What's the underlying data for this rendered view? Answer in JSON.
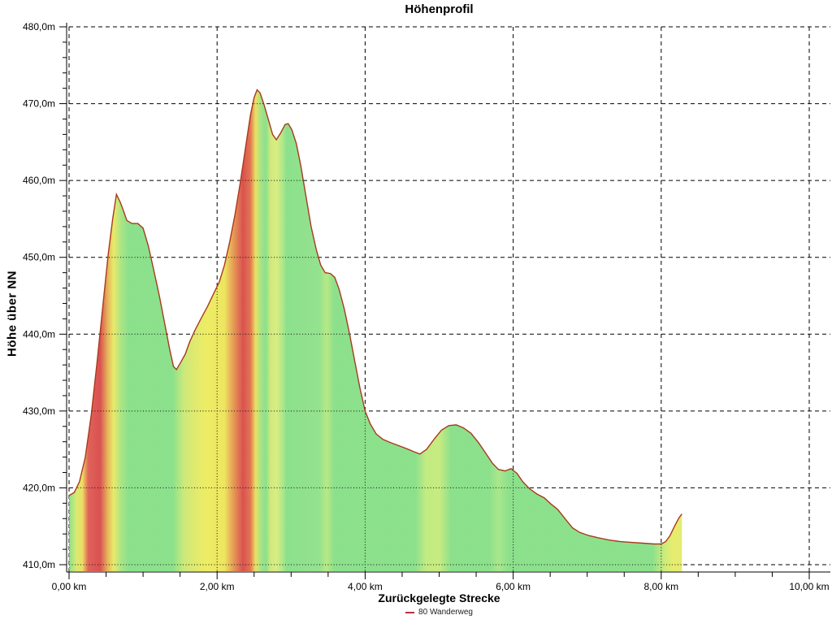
{
  "title": "Höhenprofil",
  "axes": {
    "x_title": "Zurückgelegte Strecke",
    "y_title": "Höhe über NN"
  },
  "legend": {
    "label": "80 Wanderweg",
    "marker_color": "#b5303f"
  },
  "colors": {
    "background": "#ffffff",
    "grid": "#000000",
    "profile_line": "#a83a1c",
    "fill_flat": "#86df86",
    "fill_moderate": "#ecec5c",
    "fill_steep": "#d84848"
  },
  "chart_data": {
    "type": "area",
    "title": "Höhenprofil",
    "xlabel": "Zurückgelegte Strecke",
    "ylabel": "Höhe über NN",
    "x_unit": "km",
    "y_unit": "m",
    "xlim": [
      0,
      10
    ],
    "ylim": [
      410,
      480
    ],
    "grid": "dashed",
    "legend_position": "bottom-center",
    "line_color": "#a83a1c",
    "x_minor_step": 0.5,
    "y_minor_step": 2,
    "x_major_ticks": [
      {
        "value": 0,
        "label": "0,00 km"
      },
      {
        "value": 2,
        "label": "2,00 km"
      },
      {
        "value": 4,
        "label": "4,00 km"
      },
      {
        "value": 6,
        "label": "6,00 km"
      },
      {
        "value": 8,
        "label": "8,00 km"
      },
      {
        "value": 10,
        "label": "10,00 km"
      }
    ],
    "y_major_ticks": [
      {
        "value": 410,
        "label": "410,0m"
      },
      {
        "value": 420,
        "label": "420,0m"
      },
      {
        "value": 430,
        "label": "430,0m"
      },
      {
        "value": 440,
        "label": "440,0m"
      },
      {
        "value": 450,
        "label": "450,0m"
      },
      {
        "value": 460,
        "label": "460,0m"
      },
      {
        "value": 470,
        "label": "470,0m"
      },
      {
        "value": 480,
        "label": "480,0m"
      }
    ],
    "series": [
      {
        "name": "80 Wanderweg",
        "points": [
          [
            0,
            419
          ],
          [
            0.07,
            419.4
          ],
          [
            0.14,
            420.8
          ],
          [
            0.22,
            424
          ],
          [
            0.3,
            429.5
          ],
          [
            0.38,
            436.5
          ],
          [
            0.46,
            444
          ],
          [
            0.53,
            450.5
          ],
          [
            0.59,
            455
          ],
          [
            0.64,
            458.2
          ],
          [
            0.69,
            457.2
          ],
          [
            0.73,
            456.2
          ],
          [
            0.78,
            454.8
          ],
          [
            0.85,
            454.4
          ],
          [
            0.93,
            454.4
          ],
          [
            1,
            453.8
          ],
          [
            1.07,
            451.5
          ],
          [
            1.14,
            448.5
          ],
          [
            1.22,
            445
          ],
          [
            1.3,
            441
          ],
          [
            1.36,
            438
          ],
          [
            1.41,
            435.8
          ],
          [
            1.45,
            435.4
          ],
          [
            1.5,
            436.2
          ],
          [
            1.57,
            437.4
          ],
          [
            1.63,
            439
          ],
          [
            1.7,
            440.5
          ],
          [
            1.78,
            442
          ],
          [
            1.87,
            443.6
          ],
          [
            1.95,
            445.2
          ],
          [
            2.03,
            446.8
          ],
          [
            2.1,
            449
          ],
          [
            2.17,
            452
          ],
          [
            2.24,
            455.5
          ],
          [
            2.31,
            459.5
          ],
          [
            2.38,
            464
          ],
          [
            2.45,
            468.5
          ],
          [
            2.5,
            470.8
          ],
          [
            2.54,
            471.8
          ],
          [
            2.58,
            471.4
          ],
          [
            2.63,
            470
          ],
          [
            2.69,
            468
          ],
          [
            2.75,
            466
          ],
          [
            2.8,
            465.3
          ],
          [
            2.86,
            466.2
          ],
          [
            2.92,
            467.3
          ],
          [
            2.96,
            467.4
          ],
          [
            3.01,
            466.6
          ],
          [
            3.07,
            464.8
          ],
          [
            3.13,
            462
          ],
          [
            3.2,
            458
          ],
          [
            3.27,
            454
          ],
          [
            3.34,
            451
          ],
          [
            3.4,
            449
          ],
          [
            3.46,
            448
          ],
          [
            3.53,
            447.9
          ],
          [
            3.59,
            447.4
          ],
          [
            3.65,
            445.8
          ],
          [
            3.72,
            443.2
          ],
          [
            3.79,
            440
          ],
          [
            3.86,
            436.5
          ],
          [
            3.93,
            433
          ],
          [
            4,
            430
          ],
          [
            4.07,
            428.3
          ],
          [
            4.15,
            427
          ],
          [
            4.24,
            426.3
          ],
          [
            4.34,
            425.9
          ],
          [
            4.45,
            425.5
          ],
          [
            4.56,
            425.1
          ],
          [
            4.66,
            424.7
          ],
          [
            4.74,
            424.4
          ],
          [
            4.83,
            425
          ],
          [
            4.93,
            426.3
          ],
          [
            5.03,
            427.5
          ],
          [
            5.13,
            428.1
          ],
          [
            5.23,
            428.2
          ],
          [
            5.33,
            427.8
          ],
          [
            5.43,
            427.1
          ],
          [
            5.53,
            425.9
          ],
          [
            5.63,
            424.5
          ],
          [
            5.72,
            423.2
          ],
          [
            5.8,
            422.4
          ],
          [
            5.89,
            422.2
          ],
          [
            5.97,
            422.5
          ],
          [
            6.05,
            421.9
          ],
          [
            6.13,
            420.8
          ],
          [
            6.22,
            419.9
          ],
          [
            6.32,
            419.2
          ],
          [
            6.42,
            418.7
          ],
          [
            6.51,
            417.9
          ],
          [
            6.6,
            417.2
          ],
          [
            6.7,
            416
          ],
          [
            6.8,
            414.8
          ],
          [
            6.9,
            414.2
          ],
          [
            7.02,
            413.8
          ],
          [
            7.15,
            413.5
          ],
          [
            7.3,
            413.2
          ],
          [
            7.45,
            413
          ],
          [
            7.6,
            412.9
          ],
          [
            7.75,
            412.8
          ],
          [
            7.9,
            412.7
          ],
          [
            8,
            412.7
          ],
          [
            8.06,
            413
          ],
          [
            8.12,
            413.8
          ],
          [
            8.18,
            415
          ],
          [
            8.24,
            416.1
          ],
          [
            8.28,
            416.6
          ]
        ]
      }
    ],
    "slope_gradient_stops": [
      {
        "km": 0.0,
        "color": "#86df86"
      },
      {
        "km": 0.1,
        "color": "#d8e86a"
      },
      {
        "km": 0.18,
        "color": "#ecdc5a"
      },
      {
        "km": 0.26,
        "color": "#de5a50"
      },
      {
        "km": 0.42,
        "color": "#d84848"
      },
      {
        "km": 0.52,
        "color": "#e4b050"
      },
      {
        "km": 0.6,
        "color": "#e8e862"
      },
      {
        "km": 0.7,
        "color": "#a8e47e"
      },
      {
        "km": 0.8,
        "color": "#86df86"
      },
      {
        "km": 1.4,
        "color": "#86df86"
      },
      {
        "km": 1.55,
        "color": "#c8e874"
      },
      {
        "km": 1.68,
        "color": "#dce868"
      },
      {
        "km": 1.85,
        "color": "#ecec5c"
      },
      {
        "km": 2.1,
        "color": "#ece458"
      },
      {
        "km": 2.22,
        "color": "#e4964c"
      },
      {
        "km": 2.35,
        "color": "#d84848"
      },
      {
        "km": 2.45,
        "color": "#e07048"
      },
      {
        "km": 2.52,
        "color": "#e8e05c"
      },
      {
        "km": 2.6,
        "color": "#9ce282"
      },
      {
        "km": 2.66,
        "color": "#86df86"
      },
      {
        "km": 2.72,
        "color": "#cce878"
      },
      {
        "km": 2.8,
        "color": "#d8ec7a"
      },
      {
        "km": 2.88,
        "color": "#aee684"
      },
      {
        "km": 2.94,
        "color": "#86df86"
      },
      {
        "km": 3.38,
        "color": "#8ee08a"
      },
      {
        "km": 3.48,
        "color": "#b4e87e"
      },
      {
        "km": 3.58,
        "color": "#86df86"
      },
      {
        "km": 4.68,
        "color": "#86df86"
      },
      {
        "km": 4.82,
        "color": "#beea7c"
      },
      {
        "km": 5.0,
        "color": "#c4ea7a"
      },
      {
        "km": 5.16,
        "color": "#86df86"
      },
      {
        "km": 5.68,
        "color": "#86df86"
      },
      {
        "km": 5.8,
        "color": "#a4e686"
      },
      {
        "km": 5.94,
        "color": "#86df86"
      },
      {
        "km": 7.88,
        "color": "#86df86"
      },
      {
        "km": 8.04,
        "color": "#c8ea74"
      },
      {
        "km": 8.16,
        "color": "#e6ec66"
      },
      {
        "km": 8.28,
        "color": "#e2ea6a"
      }
    ]
  }
}
